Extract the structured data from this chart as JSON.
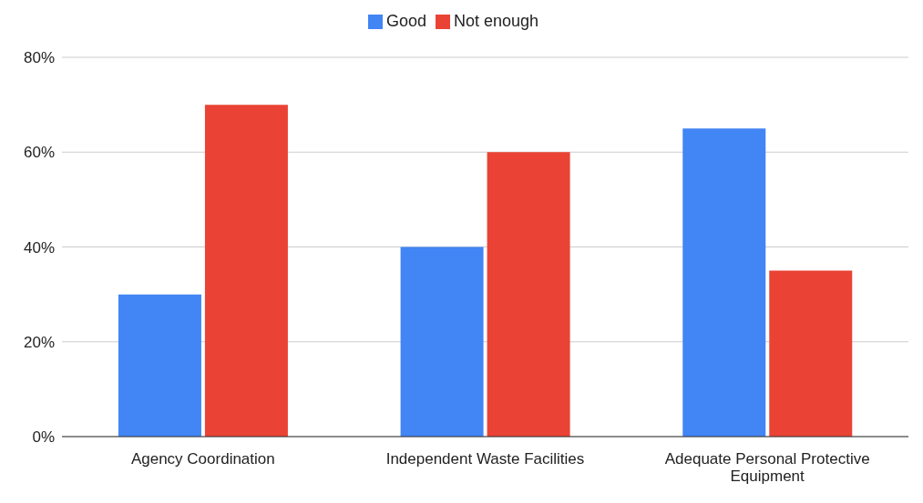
{
  "chart_data": {
    "type": "bar",
    "categories": [
      "Agency Coordination",
      "Independent Waste Facilities",
      "Adequate Personal Protective Equipment"
    ],
    "series": [
      {
        "name": "Good",
        "color": "#4285f4",
        "values": [
          30,
          40,
          65
        ]
      },
      {
        "name": "Not enough",
        "color": "#ea4335",
        "values": [
          70,
          60,
          35
        ]
      }
    ],
    "ylim": [
      0,
      80
    ],
    "yticks": [
      {
        "value": 0,
        "label": "0%"
      },
      {
        "value": 20,
        "label": "20%"
      },
      {
        "value": 40,
        "label": "40%"
      },
      {
        "value": 60,
        "label": "60%"
      },
      {
        "value": 80,
        "label": "80%"
      }
    ],
    "grid": "y",
    "legend": "top"
  }
}
